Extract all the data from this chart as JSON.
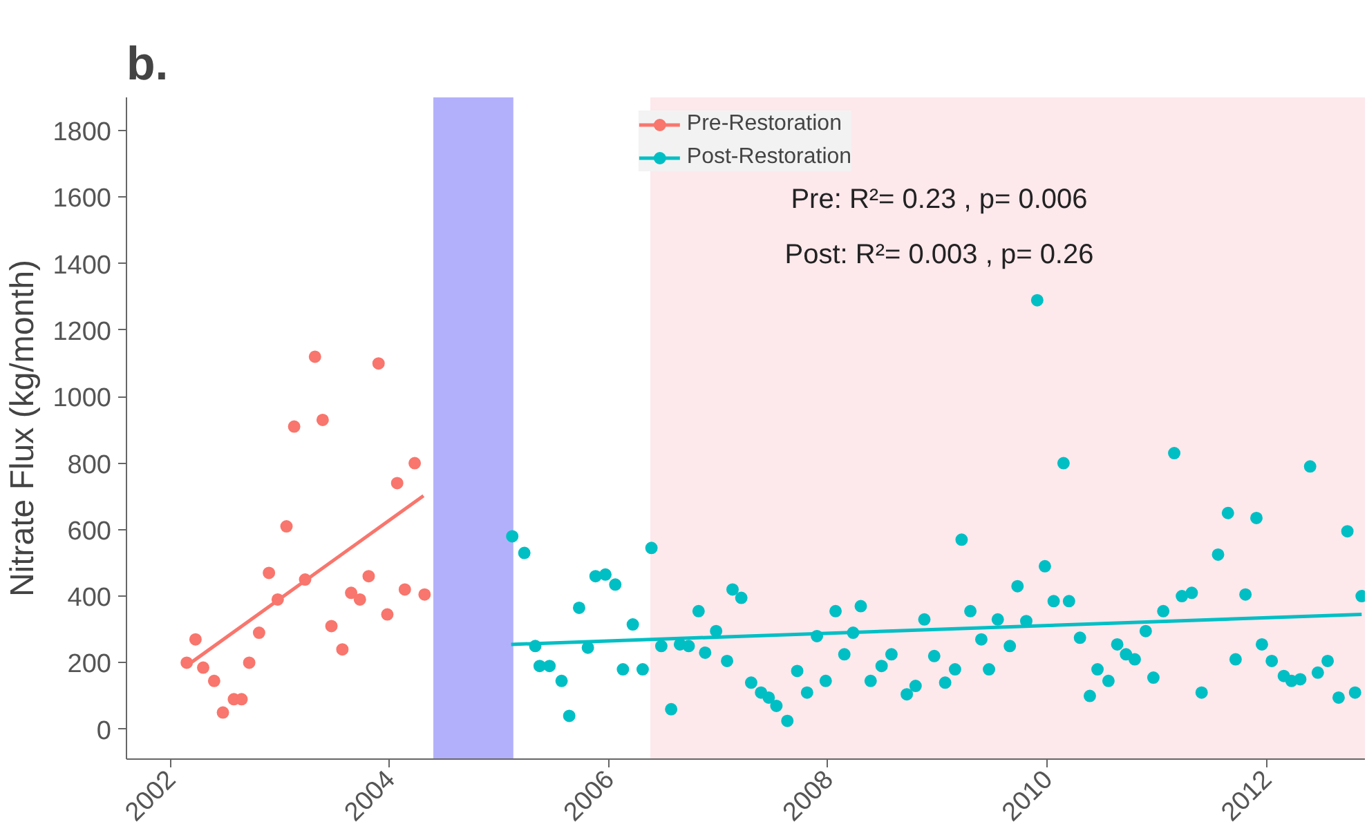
{
  "chart_data": {
    "type": "scatter",
    "title": "b.",
    "ylabel": "Nitrate Flux (kg/month)",
    "xlim": [
      2001.6,
      2012.9
    ],
    "xticks": [
      2002,
      2004,
      2006,
      2008,
      2010,
      2012
    ],
    "ylim": [
      -90,
      1900
    ],
    "yticks": [
      0,
      200,
      400,
      600,
      800,
      1000,
      1200,
      1400,
      1600,
      1800
    ],
    "grid": false,
    "legend": "top",
    "annotations": [
      "Pre: R²= 0.23 , p= 0.006",
      "Post: R²= 0.003 , p= 0.26"
    ],
    "bands": [
      {
        "axis": "x",
        "from": 2004.4,
        "to": 2005.13,
        "color": "#b3b0fb"
      },
      {
        "axis": "x",
        "from": 2006.38,
        "to": 2012.9,
        "color": "#fde8ec"
      }
    ],
    "series": [
      {
        "name": "Pre-Restoration",
        "color": "#f8766d",
        "marker": "circle",
        "x": [
          2002.15,
          2002.23,
          2002.3,
          2002.4,
          2002.48,
          2002.58,
          2002.65,
          2002.72,
          2002.81,
          2002.9,
          2002.98,
          2003.06,
          2003.13,
          2003.23,
          2003.32,
          2003.39,
          2003.47,
          2003.57,
          2003.65,
          2003.73,
          2003.81,
          2003.9,
          2003.98,
          2004.07,
          2004.14,
          2004.23,
          2004.32
        ],
        "values": [
          200,
          270,
          185,
          145,
          50,
          90,
          90,
          200,
          290,
          470,
          390,
          610,
          910,
          450,
          1120,
          930,
          310,
          240,
          410,
          390,
          460,
          1100,
          345,
          740,
          420,
          800,
          405
        ]
      },
      {
        "name": "Post-Restoration",
        "color": "#00bfc4",
        "marker": "circle",
        "x": [
          2005.12,
          2005.23,
          2005.33,
          2005.37,
          2005.46,
          2005.57,
          2005.64,
          2005.73,
          2005.81,
          2005.88,
          2005.97,
          2006.06,
          2006.13,
          2006.22,
          2006.31,
          2006.39,
          2006.48,
          2006.57,
          2006.65,
          2006.73,
          2006.82,
          2006.88,
          2006.98,
          2007.08,
          2007.13,
          2007.21,
          2007.3,
          2007.39,
          2007.46,
          2007.53,
          2007.63,
          2007.72,
          2007.81,
          2007.9,
          2007.98,
          2008.07,
          2008.15,
          2008.23,
          2008.3,
          2008.39,
          2008.49,
          2008.58,
          2008.72,
          2008.8,
          2008.88,
          2008.97,
          2009.07,
          2009.16,
          2009.22,
          2009.3,
          2009.4,
          2009.47,
          2009.55,
          2009.66,
          2009.73,
          2009.81,
          2009.91,
          2009.98,
          2010.06,
          2010.15,
          2010.2,
          2010.3,
          2010.39,
          2010.46,
          2010.56,
          2010.64,
          2010.72,
          2010.8,
          2010.9,
          2010.97,
          2011.06,
          2011.16,
          2011.23,
          2011.32,
          2011.41,
          2011.56,
          2011.65,
          2011.72,
          2011.81,
          2011.91,
          2011.96,
          2012.05,
          2012.16,
          2012.23,
          2012.31,
          2012.4,
          2012.47,
          2012.56,
          2012.66,
          2012.74,
          2012.81,
          2012.87
        ],
        "values": [
          580,
          530,
          250,
          190,
          190,
          145,
          40,
          365,
          245,
          460,
          465,
          435,
          180,
          315,
          180,
          545,
          250,
          60,
          255,
          250,
          355,
          230,
          295,
          205,
          420,
          395,
          140,
          110,
          95,
          70,
          25,
          175,
          110,
          280,
          145,
          355,
          225,
          290,
          370,
          145,
          190,
          225,
          105,
          130,
          330,
          220,
          140,
          180,
          570,
          355,
          270,
          180,
          330,
          250,
          430,
          325,
          1290,
          490,
          385,
          800,
          385,
          275,
          100,
          180,
          145,
          255,
          225,
          210,
          295,
          155,
          355,
          830,
          400,
          410,
          110,
          525,
          650,
          210,
          405,
          635,
          255,
          205,
          160,
          145,
          150,
          790,
          170,
          205,
          95,
          595,
          110,
          400
        ]
      },
      {
        "type": "line",
        "color": "#f8766d",
        "x": [
          2002.18,
          2004.31
        ],
        "values": [
          198,
          702
        ]
      },
      {
        "type": "line",
        "color": "#00bfc4",
        "x": [
          2005.11,
          2012.87
        ],
        "values": [
          255,
          345
        ]
      }
    ]
  }
}
